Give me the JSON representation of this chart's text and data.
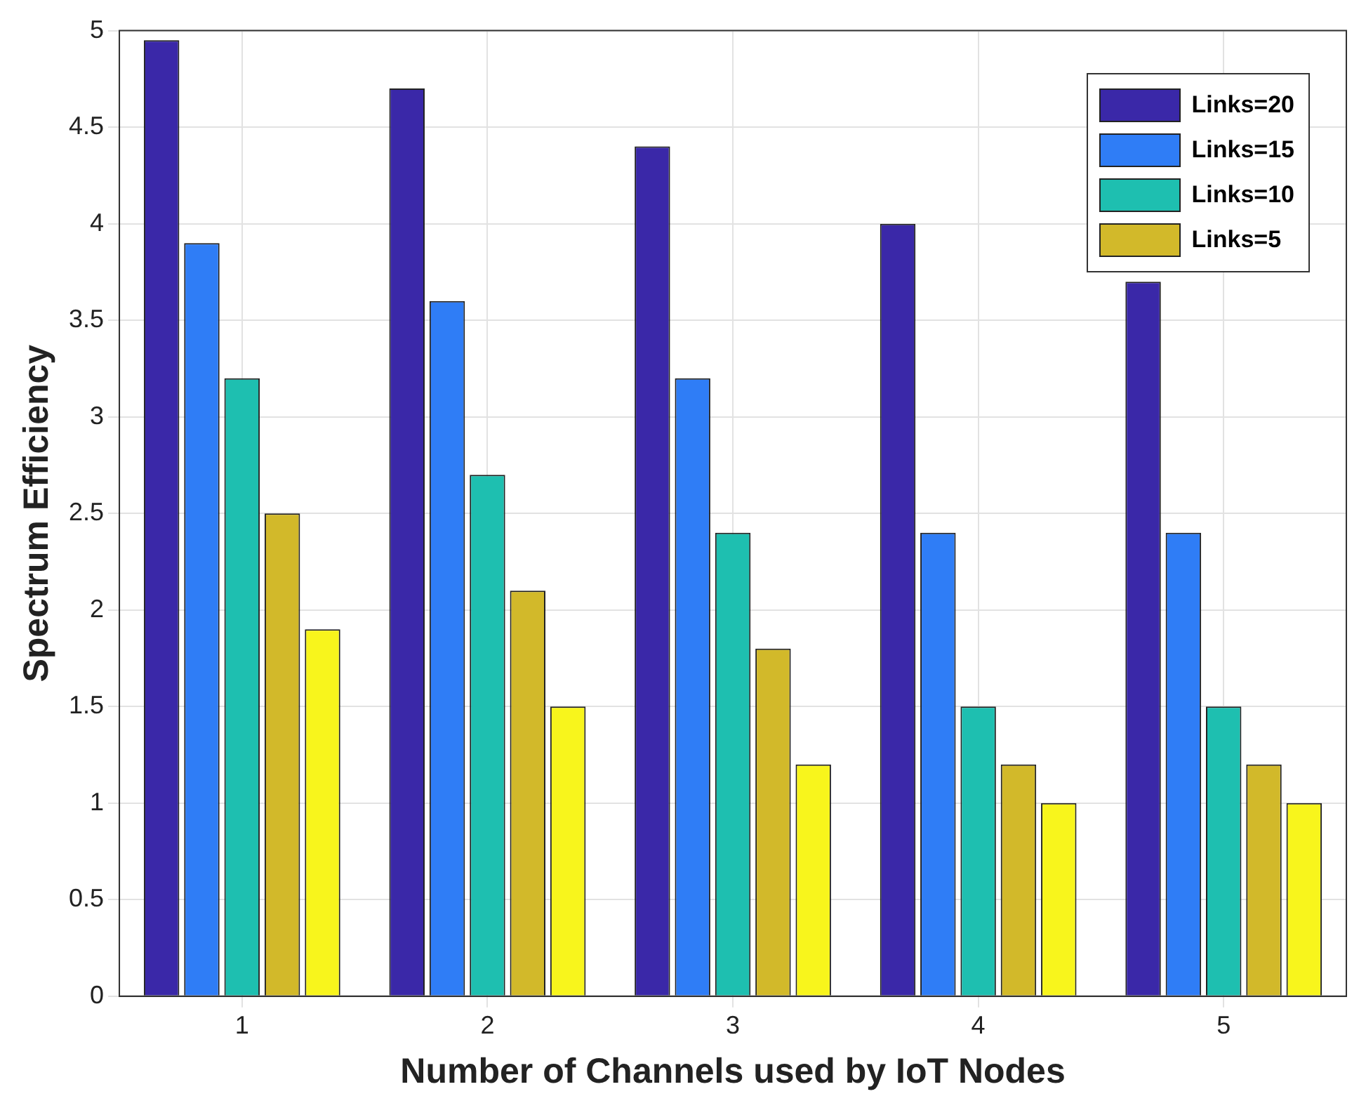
{
  "chart_data": {
    "type": "bar",
    "xlabel": "Number of Channels used by IoT Nodes",
    "ylabel": "Spectrum Efficiency",
    "categories": [
      "1",
      "2",
      "3",
      "4",
      "5"
    ],
    "series": [
      {
        "name": "Links=20",
        "color": "#3a28a8",
        "values": [
          4.95,
          4.7,
          4.4,
          4.0,
          3.7
        ]
      },
      {
        "name": "Links=15",
        "color": "#2f7df6",
        "values": [
          3.9,
          3.6,
          3.2,
          2.4,
          2.4
        ]
      },
      {
        "name": "Links=10",
        "color": "#1ebfb0",
        "values": [
          3.2,
          2.7,
          2.4,
          1.5,
          1.5
        ]
      },
      {
        "name": "Links=5",
        "color": "#d2b92a",
        "values": [
          2.5,
          2.1,
          1.8,
          1.2,
          1.2
        ]
      },
      {
        "color": "#f8f51c",
        "values": [
          1.9,
          1.5,
          1.2,
          1.0,
          1.0
        ]
      }
    ],
    "ylim": [
      0,
      5
    ],
    "yticks": [
      0,
      0.5,
      1,
      1.5,
      2,
      2.5,
      3,
      3.5,
      4,
      4.5,
      5
    ],
    "grid": true,
    "legend": "top right"
  }
}
